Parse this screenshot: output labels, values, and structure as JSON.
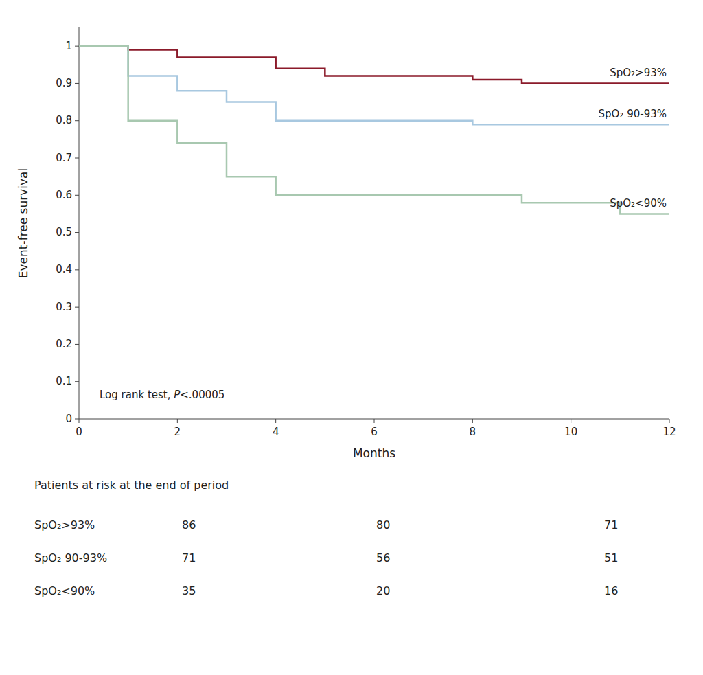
{
  "chart_data": {
    "type": "line",
    "xlabel": "Months",
    "ylabel": "Event-free survival",
    "xlim": [
      0,
      12
    ],
    "ylim": [
      0,
      1.05
    ],
    "xticks": [
      0,
      2,
      4,
      6,
      8,
      10,
      12
    ],
    "yticks": [
      0,
      0.1,
      0.2,
      0.3,
      0.4,
      0.5,
      0.6,
      0.7,
      0.8,
      0.9,
      1
    ],
    "grid": false,
    "line_style": "step",
    "annotation": [
      "Log rank test, ",
      "P",
      "<.00005"
    ],
    "series": [
      {
        "name": "SpO₂>93%",
        "color": "#8B1A2A",
        "x": [
          0,
          1,
          1,
          2,
          2,
          4,
          4,
          5,
          5,
          8,
          8,
          9,
          9,
          11,
          11,
          12
        ],
        "values": [
          1,
          1,
          0.99,
          0.99,
          0.97,
          0.97,
          0.94,
          0.94,
          0.92,
          0.92,
          0.91,
          0.91,
          0.9,
          0.9,
          0.9,
          0.9
        ]
      },
      {
        "name": "SpO₂ 90-93%",
        "color": "#A8C8E0",
        "x": [
          0,
          1,
          1,
          2,
          2,
          3,
          3,
          4,
          4,
          5,
          5,
          8,
          8,
          12
        ],
        "values": [
          1,
          1,
          0.92,
          0.92,
          0.88,
          0.88,
          0.85,
          0.85,
          0.8,
          0.8,
          0.8,
          0.8,
          0.79,
          0.79
        ]
      },
      {
        "name": "SpO₂<90%",
        "color": "#A8C8B0",
        "x": [
          0,
          1,
          1,
          2,
          2,
          3,
          3,
          4,
          4,
          9,
          9,
          11,
          11,
          12
        ],
        "values": [
          1,
          1,
          0.8,
          0.8,
          0.74,
          0.74,
          0.65,
          0.65,
          0.6,
          0.6,
          0.58,
          0.58,
          0.55,
          0.55
        ]
      }
    ],
    "risk_table": {
      "title": "Patients at risk at the end of period",
      "rows": [
        {
          "name": "SpO₂>93%",
          "values": [
            86,
            80,
            71
          ]
        },
        {
          "name": "SpO₂ 90-93%",
          "values": [
            71,
            56,
            51
          ]
        },
        {
          "name": "SpO₂<90%",
          "values": [
            35,
            20,
            16
          ]
        }
      ]
    }
  }
}
